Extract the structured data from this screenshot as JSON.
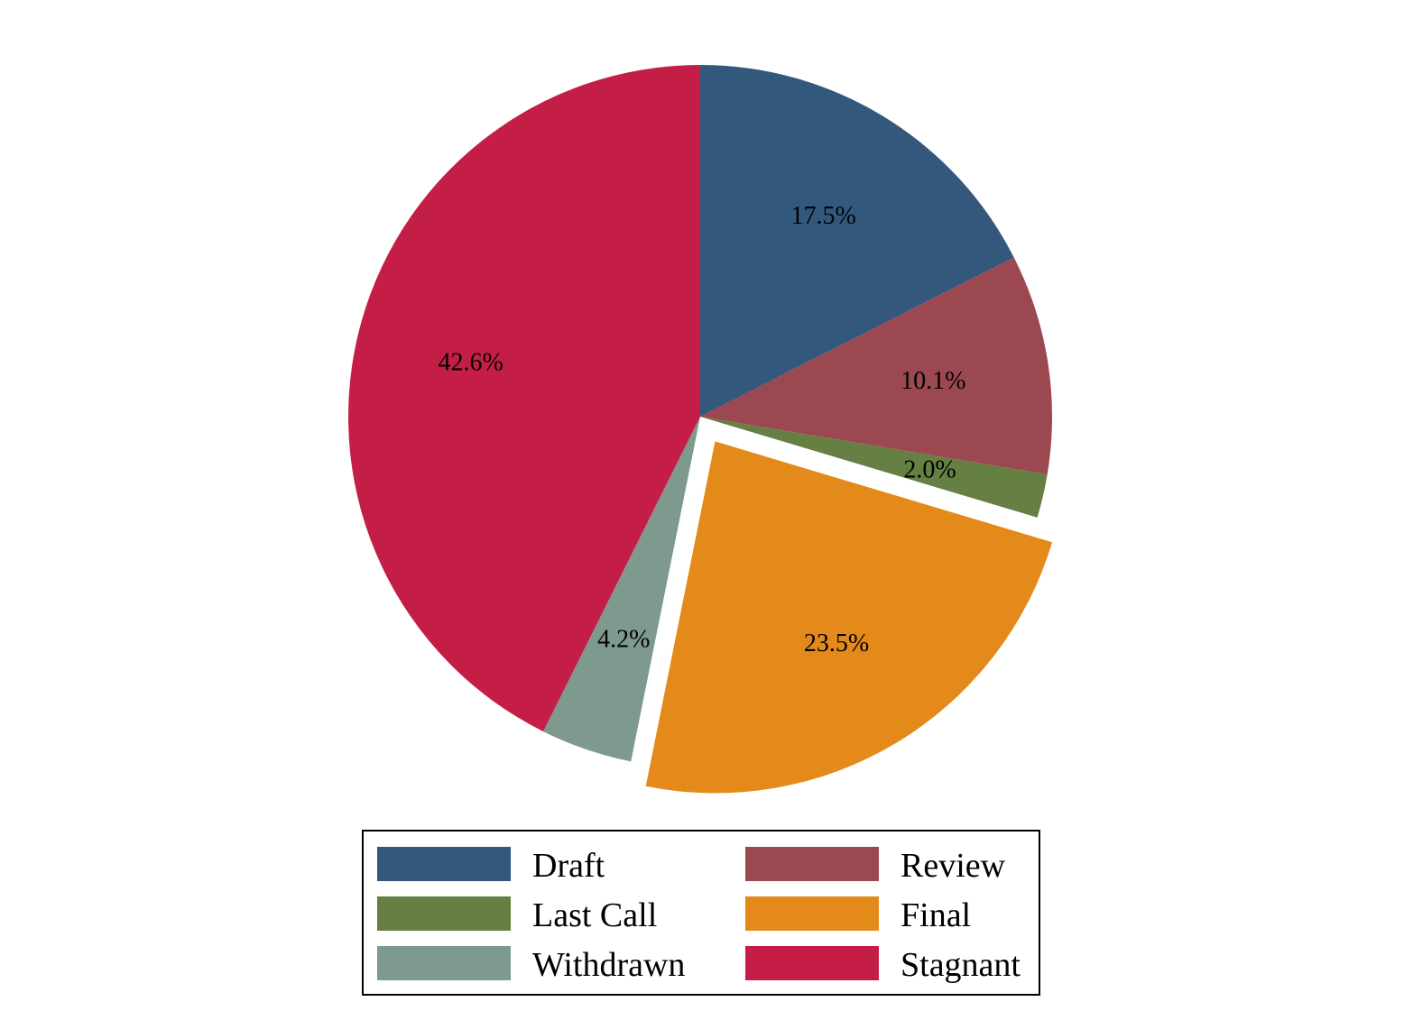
{
  "chart_data": {
    "type": "pie",
    "title": "",
    "slices": [
      {
        "name": "Draft",
        "value": 17.5,
        "label": "17.5%",
        "color": "#33587c",
        "explode": false
      },
      {
        "name": "Review",
        "value": 10.1,
        "label": "10.1%",
        "color": "#9b4850",
        "explode": false
      },
      {
        "name": "Last Call",
        "value": 2.0,
        "label": "2.0%",
        "color": "#667f43",
        "explode": false
      },
      {
        "name": "Final",
        "value": 23.5,
        "label": "23.5%",
        "color": "#e48a1b",
        "explode": true
      },
      {
        "name": "Withdrawn",
        "value": 4.2,
        "label": "4.2%",
        "color": "#7e998e",
        "explode": false
      },
      {
        "name": "Stagnant",
        "value": 42.6,
        "label": "42.6%",
        "color": "#c51e46",
        "explode": false
      }
    ],
    "start_angle": "12 o'clock",
    "direction": "clockwise",
    "legend": {
      "placement": "bottom",
      "columns": 2,
      "entries": [
        "Draft",
        "Review",
        "Last Call",
        "Final",
        "Withdrawn",
        "Stagnant"
      ]
    }
  }
}
